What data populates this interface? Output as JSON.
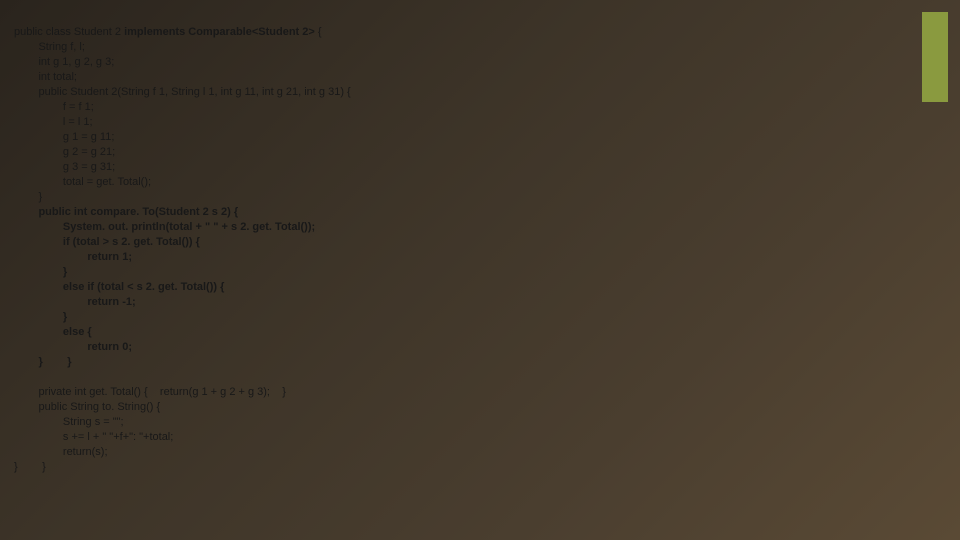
{
  "code": {
    "l1": "public class Student 2 ",
    "l1b": "implements Comparable<Student 2>",
    "l1c": " {",
    "l2": "String f, l;",
    "l3": "int g 1, g 2, g 3;",
    "l4": "int total;",
    "l5": "public Student 2(String f 1, String l 1, int g 11, int g 21, int g 31) {",
    "l6": "f = f 1;",
    "l7": "l = l 1;",
    "l8": "g 1 = g 11;",
    "l9": "g 2 = g 21;",
    "l10": "g 3 = g 31;",
    "l11": "total = get. Total();",
    "l12": "}",
    "l13": "public int compare. To(Student 2 s 2) {",
    "l14": "System. out. println(total + \" \" + s 2. get. Total());",
    "l15": "if (total > s 2. get. Total()) {",
    "l16": "return 1;",
    "l17": "}",
    "l18": "else if (total < s 2. get. Total()) {",
    "l19": "return -1;",
    "l20": "}",
    "l21": "else {",
    "l22": "return 0;",
    "l23a": "}",
    "l23b": "}",
    "l24": "private int get. Total() {    return(g 1 + g 2 + g 3);    }",
    "l25": "public String to. String() {",
    "l26": "String s = \"\";",
    "l27": "s += l + \" \"+f+\": \"+total;",
    "l28": "return(s);",
    "l29a": "}",
    "l29b": "}"
  },
  "indent": {
    "i0": "",
    "i1": "        ",
    "i2": "                ",
    "i3": "                        ",
    "i4": "                                "
  },
  "accent_color": "#8a9a3f"
}
